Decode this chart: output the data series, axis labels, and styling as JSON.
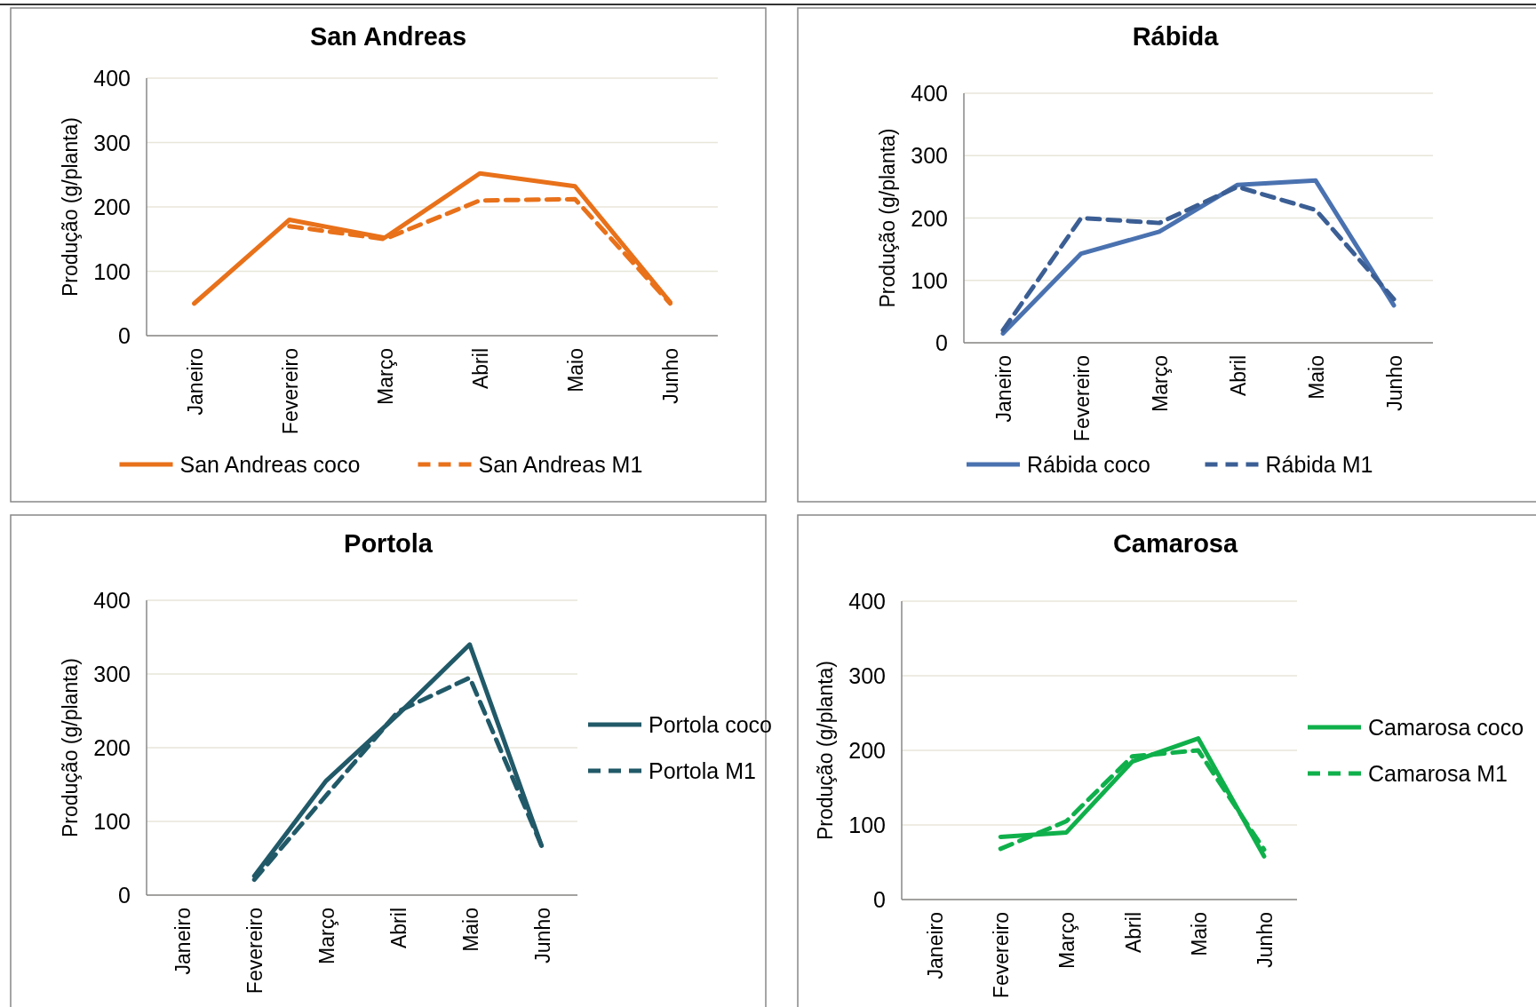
{
  "chart_data": [
    {
      "type": "line",
      "title": "San Andreas",
      "ylabel": "Produção (g/planta)",
      "categories": [
        "Janeiro",
        "Fevereiro",
        "Março",
        "Abril",
        "Maio",
        "Junho"
      ],
      "ylim": [
        0,
        400
      ],
      "yticks": [
        0,
        100,
        200,
        300,
        400
      ],
      "grid": "y",
      "legend": "bottom",
      "marker": "none",
      "series": [
        {
          "name": "San Andreas coco",
          "color": "#e8711a",
          "line_style": "solid",
          "values": [
            50,
            180,
            152,
            252,
            232,
            52
          ]
        },
        {
          "name": "San Andreas M1",
          "color": "#e8711a",
          "line_style": "dashed",
          "values": [
            null,
            170,
            150,
            210,
            212,
            50
          ]
        }
      ]
    },
    {
      "type": "line",
      "title": "Rábida",
      "ylabel": "Produção (g/planta)",
      "categories": [
        "Janeiro",
        "Fevereiro",
        "Março",
        "Abril",
        "Maio",
        "Junho"
      ],
      "ylim": [
        0,
        400
      ],
      "yticks": [
        0,
        100,
        200,
        300,
        400
      ],
      "grid": "y",
      "legend": "bottom",
      "marker": "none",
      "series": [
        {
          "name": "Rábida coco",
          "color": "#4a72b0",
          "line_style": "solid",
          "values": [
            15,
            143,
            178,
            253,
            260,
            60
          ]
        },
        {
          "name": "Rábida M1",
          "color": "#3b5e94",
          "line_style": "dashed",
          "values": [
            20,
            200,
            192,
            250,
            213,
            70
          ]
        }
      ]
    },
    {
      "type": "line",
      "title": "Portola",
      "ylabel": "Produção (g/planta)",
      "categories": [
        "Janeiro",
        "Fevereiro",
        "Março",
        "Abril",
        "Maio",
        "Junho"
      ],
      "ylim": [
        0,
        400
      ],
      "yticks": [
        0,
        100,
        200,
        300,
        400
      ],
      "grid": "y",
      "legend": "right",
      "marker": "none",
      "series": [
        {
          "name": "Portola coco",
          "color": "#215968",
          "line_style": "solid",
          "values": [
            null,
            26,
            155,
            245,
            340,
            67
          ]
        },
        {
          "name": "Portola M1",
          "color": "#215968",
          "line_style": "dashed",
          "values": [
            null,
            21,
            135,
            249,
            295,
            67
          ]
        }
      ]
    },
    {
      "type": "line",
      "title": "Camarosa",
      "ylabel": "Produção (g/planta)",
      "categories": [
        "Janeiro",
        "Fevereiro",
        "Março",
        "Abril",
        "Maio",
        "Junho"
      ],
      "ylim": [
        0,
        400
      ],
      "yticks": [
        0,
        100,
        200,
        300,
        400
      ],
      "grid": "y",
      "legend": "right",
      "marker": "none",
      "series": [
        {
          "name": "Camarosa coco",
          "color": "#0fb04b",
          "line_style": "solid",
          "values": [
            null,
            84,
            90,
            185,
            216,
            58
          ]
        },
        {
          "name": "Camarosa M1",
          "color": "#0fb04b",
          "line_style": "dashed",
          "values": [
            null,
            68,
            105,
            192,
            200,
            67
          ]
        }
      ]
    }
  ]
}
